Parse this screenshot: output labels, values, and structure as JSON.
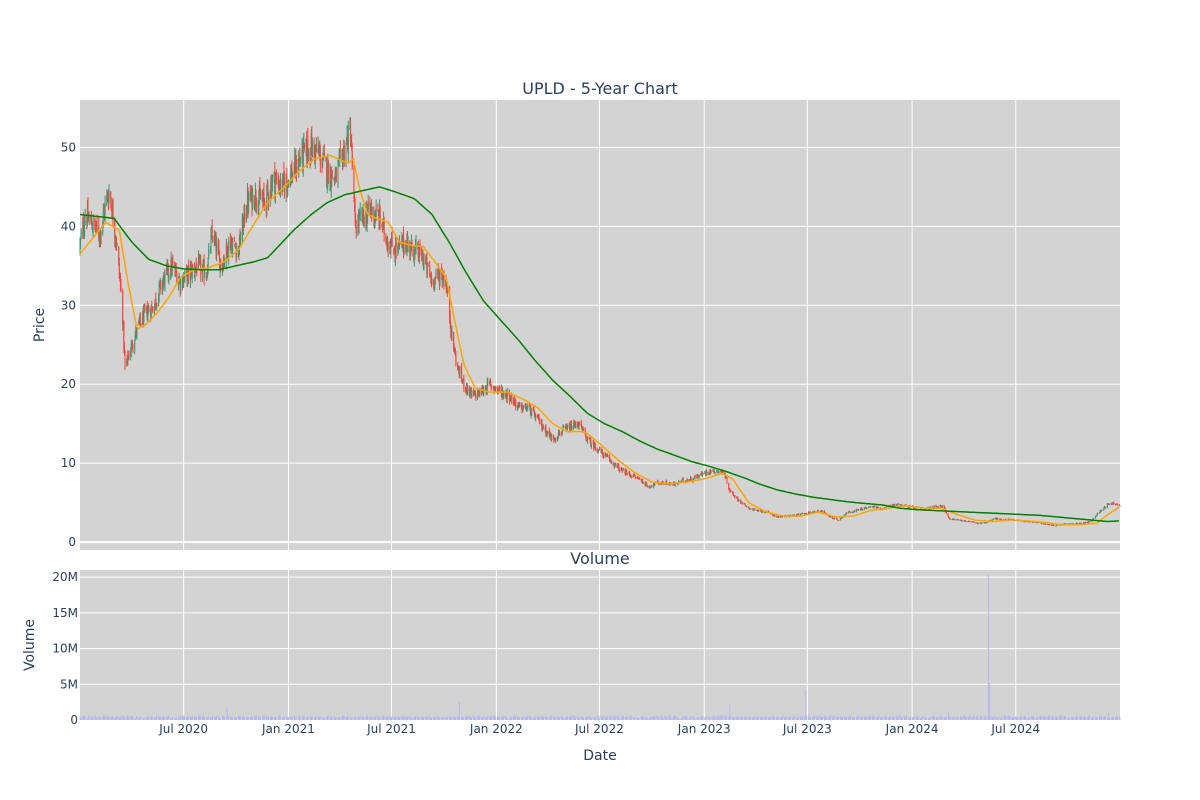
{
  "chart_data": [
    {
      "type": "candlestick",
      "title": "UPLD - 5-Year Chart",
      "xlabel": "",
      "ylabel": "Price",
      "ylim": [
        -1,
        56
      ],
      "yticks": [
        0,
        10,
        20,
        30,
        40,
        50
      ],
      "x_range": [
        "2020-01-01",
        "2024-12-31"
      ],
      "grid": true,
      "legend": "none",
      "colors": {
        "background": "#d3d3d3",
        "gridline": "#ffffff",
        "increasing": "#3d9970",
        "decreasing": "#ff4136",
        "sma_short": "#ffa500",
        "sma_long": "#008000"
      },
      "close_anchors": [
        [
          "2020-01-01",
          37.5
        ],
        [
          "2020-01-10",
          41.5
        ],
        [
          "2020-01-25",
          40
        ],
        [
          "2020-02-05",
          39
        ],
        [
          "2020-02-15",
          43
        ],
        [
          "2020-02-22",
          44.5
        ],
        [
          "2020-03-05",
          38
        ],
        [
          "2020-03-15",
          30
        ],
        [
          "2020-03-20",
          22
        ],
        [
          "2020-03-28",
          24
        ],
        [
          "2020-04-10",
          27
        ],
        [
          "2020-04-25",
          29
        ],
        [
          "2020-05-10",
          30
        ],
        [
          "2020-05-25",
          33
        ],
        [
          "2020-06-10",
          35
        ],
        [
          "2020-06-25",
          33
        ],
        [
          "2020-07-10",
          34
        ],
        [
          "2020-07-25",
          35
        ],
        [
          "2020-08-10",
          34
        ],
        [
          "2020-08-20",
          39
        ],
        [
          "2020-09-05",
          35
        ],
        [
          "2020-09-20",
          38
        ],
        [
          "2020-10-05",
          37
        ],
        [
          "2020-10-20",
          43
        ],
        [
          "2020-11-05",
          44
        ],
        [
          "2020-11-20",
          43
        ],
        [
          "2020-12-05",
          46
        ],
        [
          "2020-12-20",
          45
        ],
        [
          "2021-01-10",
          47
        ],
        [
          "2021-01-25",
          49
        ],
        [
          "2021-02-10",
          50
        ],
        [
          "2021-02-25",
          49
        ],
        [
          "2021-03-10",
          47
        ],
        [
          "2021-03-25",
          46
        ],
        [
          "2021-04-10",
          50
        ],
        [
          "2021-04-20",
          52
        ],
        [
          "2021-04-28",
          40
        ],
        [
          "2021-05-10",
          41
        ],
        [
          "2021-05-25",
          42
        ],
        [
          "2021-06-10",
          41
        ],
        [
          "2021-06-25",
          38
        ],
        [
          "2021-07-10",
          37
        ],
        [
          "2021-07-25",
          38
        ],
        [
          "2021-08-10",
          37
        ],
        [
          "2021-08-25",
          36
        ],
        [
          "2021-09-10",
          33
        ],
        [
          "2021-09-25",
          34
        ],
        [
          "2021-10-05",
          33
        ],
        [
          "2021-10-15",
          26
        ],
        [
          "2021-10-25",
          22
        ],
        [
          "2021-11-05",
          20
        ],
        [
          "2021-11-20",
          18.5
        ],
        [
          "2021-12-05",
          19
        ],
        [
          "2021-12-20",
          20
        ],
        [
          "2022-01-10",
          19
        ],
        [
          "2022-01-25",
          18.5
        ],
        [
          "2022-02-10",
          17
        ],
        [
          "2022-02-25",
          17
        ],
        [
          "2022-03-10",
          16
        ],
        [
          "2022-03-25",
          14.5
        ],
        [
          "2022-04-10",
          13
        ],
        [
          "2022-04-25",
          14
        ],
        [
          "2022-05-10",
          14.5
        ],
        [
          "2022-05-25",
          15
        ],
        [
          "2022-06-10",
          13
        ],
        [
          "2022-06-25",
          12
        ],
        [
          "2022-07-10",
          11
        ],
        [
          "2022-07-25",
          10
        ],
        [
          "2022-08-10",
          9
        ],
        [
          "2022-08-25",
          8.5
        ],
        [
          "2022-09-10",
          8
        ],
        [
          "2022-09-25",
          7
        ],
        [
          "2022-10-10",
          7.5
        ],
        [
          "2022-10-25",
          7.5
        ],
        [
          "2022-11-10",
          7.3
        ],
        [
          "2022-11-25",
          7.8
        ],
        [
          "2022-12-10",
          8
        ],
        [
          "2022-12-25",
          8.5
        ],
        [
          "2023-01-10",
          9
        ],
        [
          "2023-01-25",
          9
        ],
        [
          "2023-02-05",
          8.8
        ],
        [
          "2023-02-15",
          6.5
        ],
        [
          "2023-02-28",
          5.5
        ],
        [
          "2023-03-15",
          4.5
        ],
        [
          "2023-04-01",
          4
        ],
        [
          "2023-04-20",
          3.8
        ],
        [
          "2023-05-10",
          3.2
        ],
        [
          "2023-05-25",
          3.3
        ],
        [
          "2023-06-10",
          3.4
        ],
        [
          "2023-06-25",
          3.6
        ],
        [
          "2023-07-10",
          3.8
        ],
        [
          "2023-07-25",
          4
        ],
        [
          "2023-08-10",
          3.2
        ],
        [
          "2023-08-25",
          2.8
        ],
        [
          "2023-09-10",
          3.8
        ],
        [
          "2023-09-25",
          4
        ],
        [
          "2023-10-10",
          4.3
        ],
        [
          "2023-10-25",
          4.5
        ],
        [
          "2023-11-10",
          4.2
        ],
        [
          "2023-11-25",
          4.6
        ],
        [
          "2023-12-10",
          4.8
        ],
        [
          "2023-12-25",
          4.5
        ],
        [
          "2024-01-10",
          4.3
        ],
        [
          "2024-01-25",
          4.2
        ],
        [
          "2024-02-10",
          4.5
        ],
        [
          "2024-02-25",
          4.6
        ],
        [
          "2024-03-05",
          3
        ],
        [
          "2024-03-25",
          2.8
        ],
        [
          "2024-04-10",
          2.6
        ],
        [
          "2024-04-25",
          2.4
        ],
        [
          "2024-05-10",
          2.5
        ],
        [
          "2024-05-25",
          3
        ],
        [
          "2024-06-10",
          2.8
        ],
        [
          "2024-06-25",
          2.9
        ],
        [
          "2024-07-10",
          2.7
        ],
        [
          "2024-07-25",
          2.6
        ],
        [
          "2024-08-10",
          2.5
        ],
        [
          "2024-08-25",
          2.2
        ],
        [
          "2024-09-10",
          2.1
        ],
        [
          "2024-09-25",
          2.3
        ],
        [
          "2024-10-10",
          2.3
        ],
        [
          "2024-10-25",
          2.4
        ],
        [
          "2024-11-10",
          2.6
        ],
        [
          "2024-11-20",
          3.5
        ],
        [
          "2024-12-05",
          4.5
        ],
        [
          "2024-12-15",
          5
        ],
        [
          "2024-12-31",
          4.6
        ]
      ],
      "sma_short": [
        [
          "2020-01-01",
          36.5
        ],
        [
          "2020-02-15",
          40.5
        ],
        [
          "2020-03-10",
          39.5
        ],
        [
          "2020-03-25",
          33
        ],
        [
          "2020-04-10",
          27
        ],
        [
          "2020-04-25",
          27.5
        ],
        [
          "2020-05-15",
          29
        ],
        [
          "2020-06-05",
          31
        ],
        [
          "2020-06-25",
          33.5
        ],
        [
          "2020-07-20",
          34.5
        ],
        [
          "2020-08-15",
          34.8
        ],
        [
          "2020-09-10",
          35.5
        ],
        [
          "2020-10-05",
          37
        ],
        [
          "2020-10-30",
          40
        ],
        [
          "2020-11-25",
          43
        ],
        [
          "2020-12-25",
          45
        ],
        [
          "2021-01-20",
          47
        ],
        [
          "2021-02-15",
          48.5
        ],
        [
          "2021-03-15",
          49
        ],
        [
          "2021-04-15",
          48
        ],
        [
          "2021-04-25",
          48.5
        ],
        [
          "2021-05-05",
          45
        ],
        [
          "2021-05-20",
          41.5
        ],
        [
          "2021-06-05",
          41
        ],
        [
          "2021-06-25",
          40.5
        ],
        [
          "2021-07-15",
          38
        ],
        [
          "2021-08-10",
          37.5
        ],
        [
          "2021-08-25",
          37.5
        ],
        [
          "2021-09-15",
          35.5
        ],
        [
          "2021-10-05",
          33.5
        ],
        [
          "2021-10-20",
          28
        ],
        [
          "2021-11-05",
          22.5
        ],
        [
          "2021-11-25",
          19.5
        ],
        [
          "2021-12-20",
          19
        ],
        [
          "2022-01-20",
          19
        ],
        [
          "2022-02-20",
          18
        ],
        [
          "2022-03-15",
          17
        ],
        [
          "2022-04-10",
          15
        ],
        [
          "2022-05-05",
          14
        ],
        [
          "2022-06-05",
          14
        ],
        [
          "2022-07-01",
          12.5
        ],
        [
          "2022-08-01",
          10.5
        ],
        [
          "2022-09-01",
          8.8
        ],
        [
          "2022-10-01",
          7.6
        ],
        [
          "2022-11-01",
          7.4
        ],
        [
          "2022-12-01",
          7.6
        ],
        [
          "2023-01-01",
          8
        ],
        [
          "2023-02-01",
          8.7
        ],
        [
          "2023-02-20",
          8
        ],
        [
          "2023-03-20",
          5
        ],
        [
          "2023-04-20",
          3.8
        ],
        [
          "2023-05-20",
          3.3
        ],
        [
          "2023-06-20",
          3.3
        ],
        [
          "2023-07-20",
          3.8
        ],
        [
          "2023-08-20",
          3.2
        ],
        [
          "2023-09-20",
          3.3
        ],
        [
          "2023-10-20",
          4
        ],
        [
          "2023-11-20",
          4.3
        ],
        [
          "2023-12-20",
          4.6
        ],
        [
          "2024-01-20",
          4.3
        ],
        [
          "2024-02-20",
          4.3
        ],
        [
          "2024-03-20",
          3.5
        ],
        [
          "2024-04-20",
          2.8
        ],
        [
          "2024-05-20",
          2.6
        ],
        [
          "2024-06-20",
          2.8
        ],
        [
          "2024-07-20",
          2.7
        ],
        [
          "2024-08-20",
          2.5
        ],
        [
          "2024-09-20",
          2.2
        ],
        [
          "2024-10-20",
          2.2
        ],
        [
          "2024-11-20",
          2.4
        ],
        [
          "2024-12-10",
          3.5
        ],
        [
          "2024-12-31",
          4.5
        ]
      ],
      "sma_long": [
        [
          "2020-01-01",
          41.5
        ],
        [
          "2020-03-01",
          41
        ],
        [
          "2020-04-01",
          38
        ],
        [
          "2020-05-01",
          35.8
        ],
        [
          "2020-06-01",
          35
        ],
        [
          "2020-07-01",
          34.6
        ],
        [
          "2020-08-01",
          34.5
        ],
        [
          "2020-09-01",
          34.5
        ],
        [
          "2020-10-01",
          35
        ],
        [
          "2020-11-01",
          35.5
        ],
        [
          "2020-11-25",
          36
        ],
        [
          "2020-12-15",
          37.5
        ],
        [
          "2021-01-10",
          39.5
        ],
        [
          "2021-02-10",
          41.5
        ],
        [
          "2021-03-10",
          43
        ],
        [
          "2021-04-10",
          44
        ],
        [
          "2021-05-10",
          44.5
        ],
        [
          "2021-06-10",
          45
        ],
        [
          "2021-07-10",
          44.3
        ],
        [
          "2021-08-10",
          43.5
        ],
        [
          "2021-09-10",
          41.5
        ],
        [
          "2021-10-10",
          38
        ],
        [
          "2021-11-10",
          34
        ],
        [
          "2021-12-10",
          30.5
        ],
        [
          "2022-01-10",
          28
        ],
        [
          "2022-02-10",
          25.5
        ],
        [
          "2022-03-10",
          23
        ],
        [
          "2022-04-10",
          20.5
        ],
        [
          "2022-05-10",
          18.5
        ],
        [
          "2022-06-10",
          16.3
        ],
        [
          "2022-07-10",
          15
        ],
        [
          "2022-08-10",
          14
        ],
        [
          "2022-09-10",
          12.8
        ],
        [
          "2022-10-10",
          11.8
        ],
        [
          "2022-11-10",
          11
        ],
        [
          "2022-12-10",
          10.2
        ],
        [
          "2023-01-10",
          9.6
        ],
        [
          "2023-02-10",
          8.9
        ],
        [
          "2023-03-10",
          8.2
        ],
        [
          "2023-04-10",
          7.3
        ],
        [
          "2023-05-10",
          6.6
        ],
        [
          "2023-06-10",
          6.1
        ],
        [
          "2023-07-10",
          5.7
        ],
        [
          "2023-08-10",
          5.4
        ],
        [
          "2023-09-10",
          5.1
        ],
        [
          "2023-10-10",
          4.9
        ],
        [
          "2023-11-10",
          4.7
        ],
        [
          "2023-12-10",
          4.3
        ],
        [
          "2024-01-10",
          4.1
        ],
        [
          "2024-02-10",
          4
        ],
        [
          "2024-03-10",
          3.9
        ],
        [
          "2024-04-10",
          3.8
        ],
        [
          "2024-05-10",
          3.7
        ],
        [
          "2024-06-10",
          3.6
        ],
        [
          "2024-07-10",
          3.5
        ],
        [
          "2024-08-10",
          3.4
        ],
        [
          "2024-09-10",
          3.2
        ],
        [
          "2024-10-10",
          3
        ],
        [
          "2024-11-10",
          2.8
        ],
        [
          "2024-12-10",
          2.6
        ],
        [
          "2024-12-31",
          2.7
        ]
      ]
    },
    {
      "type": "bar",
      "title": "Volume",
      "xlabel": "Date",
      "ylabel": "Volume",
      "ylim": [
        0,
        21000000
      ],
      "yticks": [
        0,
        5000000,
        10000000,
        15000000,
        20000000
      ],
      "ytick_labels": [
        "0",
        "5M",
        "10M",
        "15M",
        "20M"
      ],
      "xtick_labels": [
        {
          "date": "2020-07-01",
          "label": "Jul 2020"
        },
        {
          "date": "2021-01-01",
          "label": "Jan 2021"
        },
        {
          "date": "2021-07-01",
          "label": "Jul 2021"
        },
        {
          "date": "2022-01-01",
          "label": "Jan 2022"
        },
        {
          "date": "2022-07-01",
          "label": "Jul 2022"
        },
        {
          "date": "2023-01-01",
          "label": "Jan 2023"
        },
        {
          "date": "2023-07-01",
          "label": "Jul 2023"
        },
        {
          "date": "2024-01-01",
          "label": "Jan 2024"
        },
        {
          "date": "2024-07-01",
          "label": "Jul 2024"
        }
      ],
      "grid": true,
      "colors": {
        "bar": "#b8b8ee",
        "background": "#d3d3d3",
        "gridline": "#ffffff"
      },
      "base_volume": 500000,
      "spikes": [
        {
          "date": "2020-09-15",
          "value": 1800000
        },
        {
          "date": "2021-10-28",
          "value": 2500000
        },
        {
          "date": "2023-02-15",
          "value": 2200000
        },
        {
          "date": "2023-06-28",
          "value": 4200000
        },
        {
          "date": "2024-03-05",
          "value": 1200000
        },
        {
          "date": "2024-05-14",
          "value": 20500000
        },
        {
          "date": "2024-05-16",
          "value": 5200000
        },
        {
          "date": "2024-12-10",
          "value": 1000000
        }
      ]
    }
  ]
}
